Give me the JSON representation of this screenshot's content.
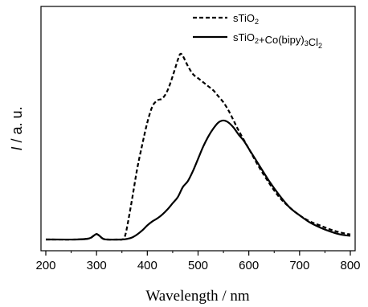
{
  "chart_data": {
    "type": "line",
    "xlabel": "Wavelength / nm",
    "ylabel_italic": "I",
    "ylabel_rest": " / a. u.",
    "xlim": [
      200,
      800
    ],
    "ylim": [
      0,
      1.1
    ],
    "xticks": [
      200,
      300,
      400,
      500,
      600,
      700,
      800
    ],
    "xtick_labels": [
      "200",
      "300",
      "400",
      "500",
      "600",
      "700",
      "800"
    ],
    "legend_position": "top-right",
    "series": [
      {
        "name_parts": [
          [
            "sTiO",
            ""
          ],
          [
            "2",
            "sub"
          ]
        ],
        "style": "dashed",
        "color": "#000000",
        "x": [
          200,
          260,
          285,
          295,
          300,
          305,
          312,
          320,
          340,
          350,
          355,
          360,
          370,
          380,
          390,
          400,
          410,
          420,
          430,
          440,
          450,
          460,
          465,
          470,
          480,
          490,
          500,
          510,
          520,
          530,
          540,
          550,
          560,
          570,
          580,
          600,
          620,
          640,
          660,
          680,
          700,
          720,
          740,
          760,
          780,
          800
        ],
        "y": [
          0.0,
          0.0,
          0.005,
          0.02,
          0.027,
          0.02,
          0.005,
          0.0,
          0.0,
          0.0,
          0.01,
          0.06,
          0.2,
          0.35,
          0.47,
          0.58,
          0.66,
          0.69,
          0.7,
          0.74,
          0.81,
          0.89,
          0.92,
          0.91,
          0.86,
          0.82,
          0.8,
          0.78,
          0.76,
          0.74,
          0.71,
          0.68,
          0.64,
          0.59,
          0.54,
          0.45,
          0.36,
          0.28,
          0.21,
          0.16,
          0.12,
          0.09,
          0.07,
          0.05,
          0.035,
          0.025
        ]
      },
      {
        "name_parts": [
          [
            "sTiO",
            ""
          ],
          [
            "2",
            "sub"
          ],
          [
            "+Co(bipy)",
            ""
          ],
          [
            "3",
            "sub"
          ],
          [
            "Cl",
            ""
          ],
          [
            "2",
            "sub"
          ]
        ],
        "style": "solid",
        "color": "#000000",
        "x": [
          200,
          260,
          285,
          295,
          300,
          305,
          312,
          320,
          350,
          360,
          370,
          380,
          390,
          400,
          410,
          420,
          430,
          440,
          450,
          460,
          470,
          480,
          490,
          500,
          510,
          520,
          530,
          540,
          550,
          560,
          570,
          580,
          590,
          600,
          620,
          640,
          660,
          680,
          700,
          720,
          740,
          760,
          780,
          800
        ],
        "y": [
          0.0,
          0.0,
          0.005,
          0.02,
          0.027,
          0.02,
          0.005,
          0.0,
          0.0,
          0.003,
          0.01,
          0.025,
          0.045,
          0.07,
          0.09,
          0.105,
          0.125,
          0.15,
          0.18,
          0.21,
          0.26,
          0.29,
          0.34,
          0.4,
          0.46,
          0.51,
          0.55,
          0.58,
          0.59,
          0.58,
          0.555,
          0.52,
          0.49,
          0.45,
          0.37,
          0.29,
          0.22,
          0.16,
          0.12,
          0.085,
          0.06,
          0.04,
          0.025,
          0.018
        ]
      }
    ]
  }
}
